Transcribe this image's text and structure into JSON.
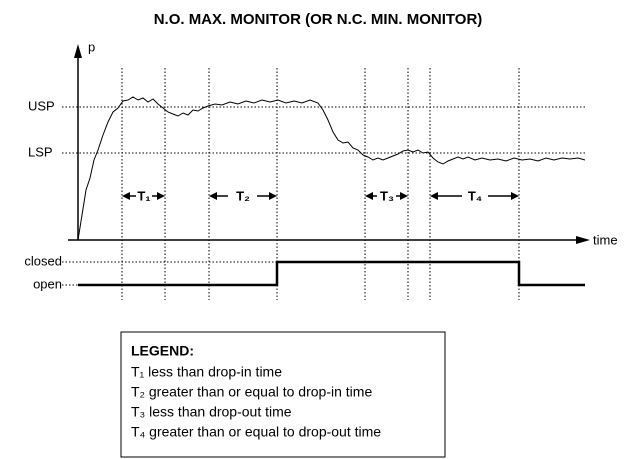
{
  "title": "N.O. MAX. MONITOR (OR N.C. MIN. MONITOR)",
  "axes": {
    "y": "p",
    "x": "time"
  },
  "levels": {
    "upper": "USP",
    "lower": "LSP"
  },
  "states": {
    "closed": "closed",
    "open": "open"
  },
  "intervals": [
    "T₁",
    "T₂",
    "T₃",
    "T₄"
  ],
  "legend": {
    "title": "LEGEND:",
    "items": [
      "T₁ less than drop-in time",
      "T₂ greater than or equal to drop-in time",
      "T₃ less than drop-out time",
      "T₄ greater than or equal to drop-out time"
    ]
  }
}
